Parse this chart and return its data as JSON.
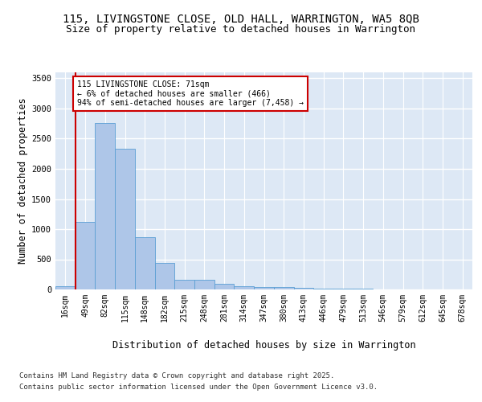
{
  "title_line1": "115, LIVINGSTONE CLOSE, OLD HALL, WARRINGTON, WA5 8QB",
  "title_line2": "Size of property relative to detached houses in Warrington",
  "xlabel": "Distribution of detached houses by size in Warrington",
  "ylabel": "Number of detached properties",
  "categories": [
    "16sqm",
    "49sqm",
    "82sqm",
    "115sqm",
    "148sqm",
    "182sqm",
    "215sqm",
    "248sqm",
    "281sqm",
    "314sqm",
    "347sqm",
    "380sqm",
    "413sqm",
    "446sqm",
    "479sqm",
    "513sqm",
    "546sqm",
    "579sqm",
    "612sqm",
    "645sqm",
    "678sqm"
  ],
  "values": [
    50,
    1120,
    2760,
    2330,
    870,
    440,
    165,
    160,
    90,
    60,
    45,
    35,
    28,
    15,
    10,
    8,
    5,
    3,
    2,
    1,
    1
  ],
  "bar_color": "#aec6e8",
  "bar_edge_color": "#5a9fd4",
  "bg_color": "#dde8f5",
  "grid_color": "#ffffff",
  "annotation_text": "115 LIVINGSTONE CLOSE: 71sqm\n← 6% of detached houses are smaller (466)\n94% of semi-detached houses are larger (7,458) →",
  "property_size_sqm": 71,
  "ylim": [
    0,
    3600
  ],
  "yticks": [
    0,
    500,
    1000,
    1500,
    2000,
    2500,
    3000,
    3500
  ],
  "footer_line1": "Contains HM Land Registry data © Crown copyright and database right 2025.",
  "footer_line2": "Contains public sector information licensed under the Open Government Licence v3.0.",
  "annotation_box_color": "#ffffff",
  "annotation_box_edge": "#cc0000",
  "red_line_bin": 1,
  "title_fontsize": 10,
  "subtitle_fontsize": 9,
  "axis_label_fontsize": 8.5,
  "tick_fontsize": 7,
  "footer_fontsize": 6.5
}
